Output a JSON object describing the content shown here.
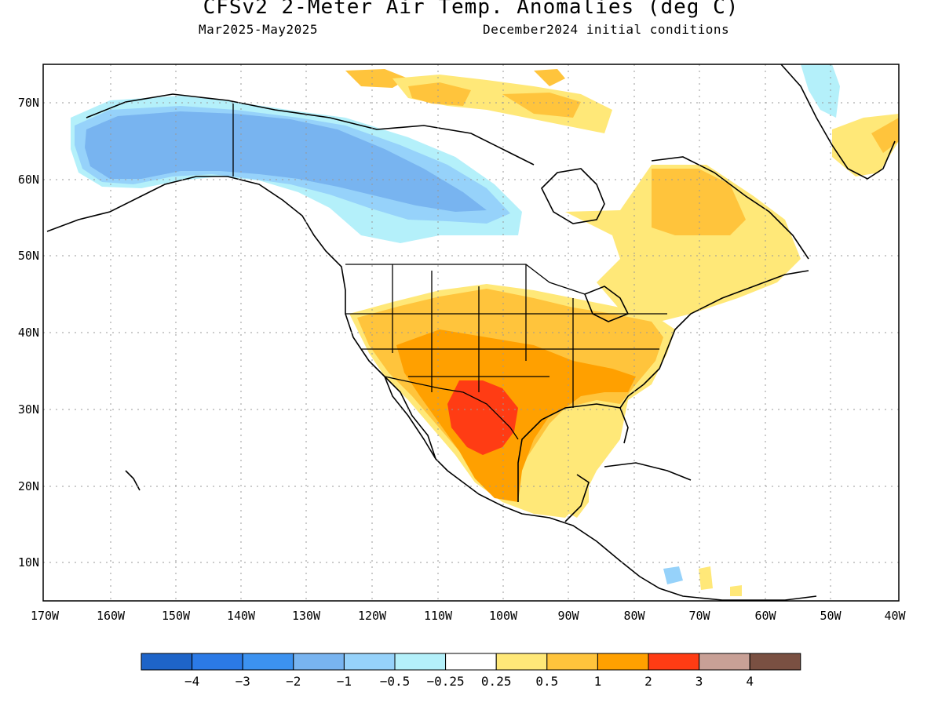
{
  "title": "CFSv2 2-Meter Air Temp. Anomalies (deg C)",
  "subtitle_left": "Mar2025-May2025",
  "subtitle_right": "December2024 initial conditions",
  "lat_labels": [
    "70N",
    "60N",
    "50N",
    "40N",
    "30N",
    "20N",
    "10N"
  ],
  "lon_labels": [
    "170W",
    "160W",
    "150W",
    "140W",
    "130W",
    "120W",
    "110W",
    "100W",
    "90W",
    "80W",
    "70W",
    "60W",
    "50W",
    "40W"
  ],
  "colorbar": {
    "colors": [
      "#1e64c8",
      "#2b7ae6",
      "#3c92f0",
      "#78b4f0",
      "#96d2fa",
      "#b4f0fa",
      "#ffffff",
      "#ffe878",
      "#ffc43c",
      "#ffa000",
      "#ff3c14",
      "#c8a096",
      "#7a5042"
    ],
    "labels": [
      "-4",
      "-3",
      "-2",
      "-1",
      "-0.5",
      "-0.25",
      "0.25",
      "0.5",
      "1",
      "2",
      "3",
      "4"
    ]
  },
  "colors": {
    "ocean": "#ffffff",
    "coast": "#000000",
    "grid": "#999999"
  }
}
